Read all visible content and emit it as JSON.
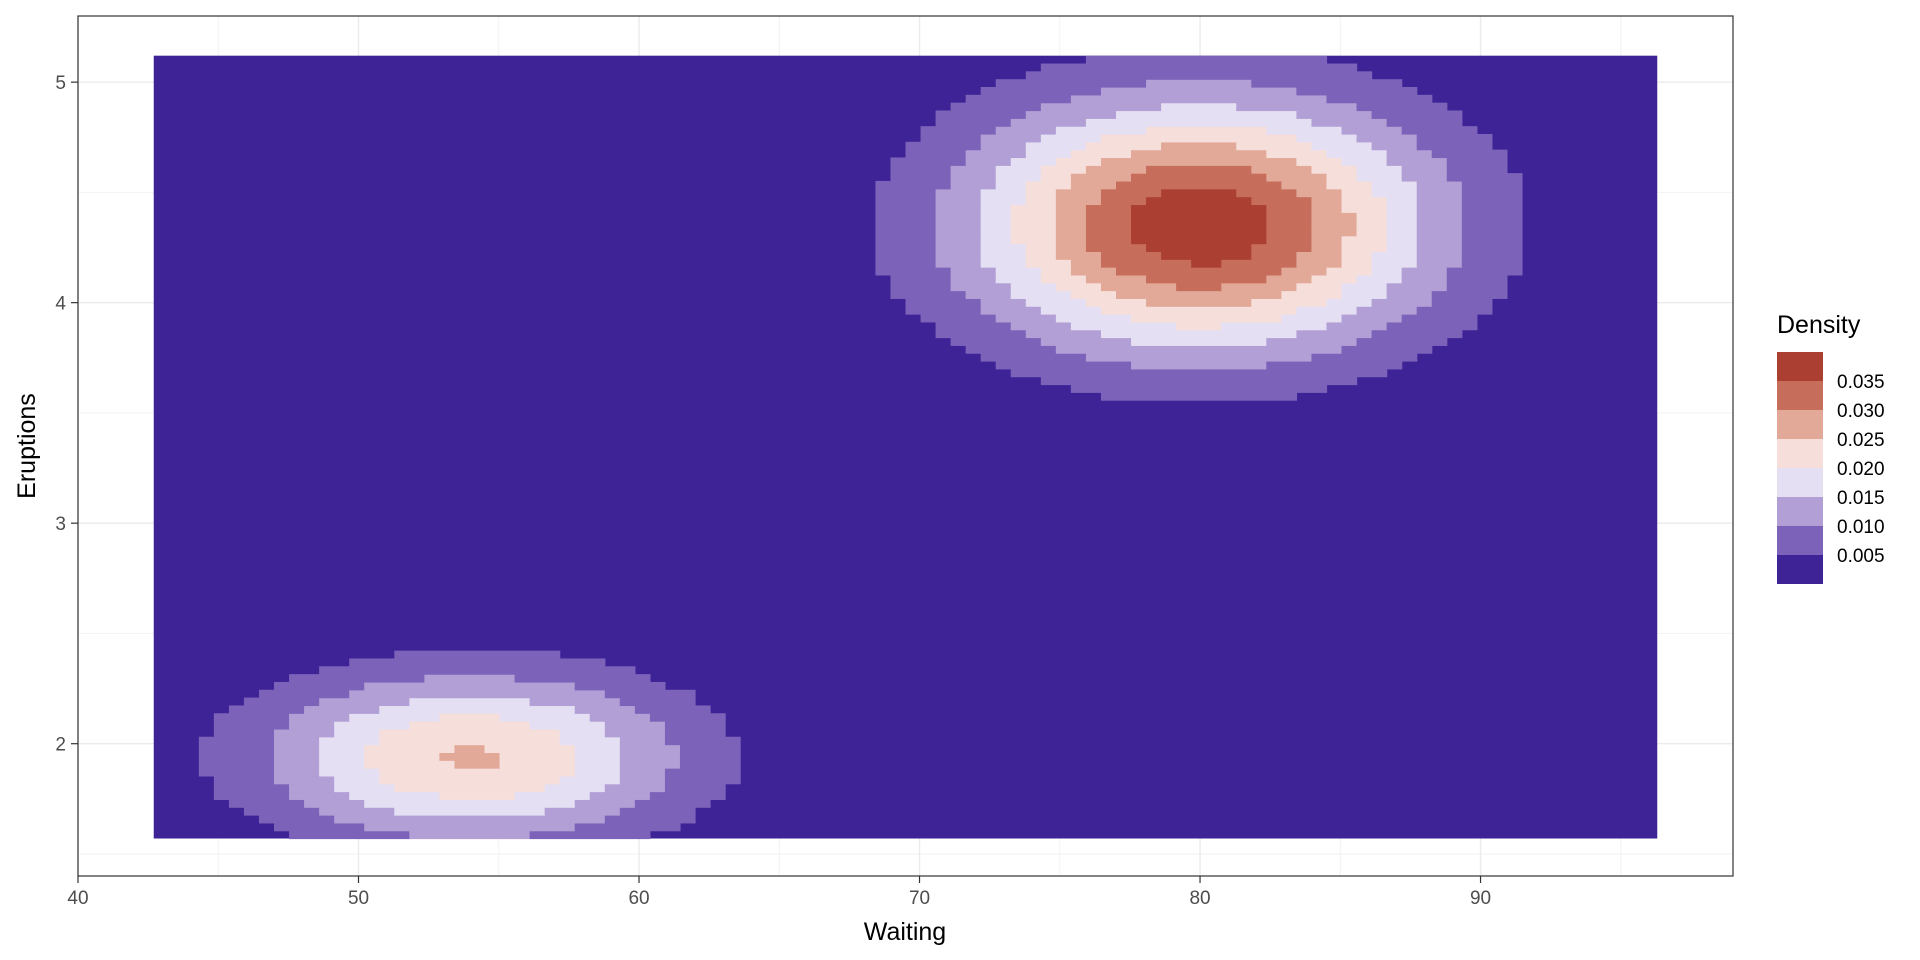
{
  "chart_data": {
    "type": "heatmap",
    "title": "",
    "xlabel": "Waiting",
    "ylabel": "Eruptions",
    "xlim": [
      40,
      99
    ],
    "ylim": [
      1.4,
      5.3
    ],
    "grid": true,
    "x_ticks": [
      40,
      50,
      60,
      70,
      80,
      90
    ],
    "y_ticks": [
      2,
      3,
      4,
      5
    ],
    "x_tick_labels": [
      "40",
      "50",
      "60",
      "70",
      "80",
      "90"
    ],
    "y_tick_labels": [
      "2",
      "3",
      "4",
      "5"
    ],
    "data_extent": {
      "x": [
        42.7,
        96.3
      ],
      "y": [
        1.57,
        5.12
      ]
    },
    "density_components": [
      {
        "mx": 80.0,
        "my": 4.35,
        "sx": 5.8,
        "sy": 0.4,
        "w": 0.0385
      },
      {
        "mx": 54.0,
        "my": 1.94,
        "sx": 5.3,
        "sy": 0.27,
        "w": 0.0255
      }
    ],
    "legend": {
      "title": "Density",
      "position": "right",
      "bins": [
        {
          "label": "0.035",
          "color": "#ab3f31"
        },
        {
          "label": "0.030",
          "color": "#c66d5c"
        },
        {
          "label": "0.025",
          "color": "#e2a898"
        },
        {
          "label": "0.020",
          "color": "#f6dfdb"
        },
        {
          "label": "0.015",
          "color": "#e4dff2"
        },
        {
          "label": "0.010",
          "color": "#b19fd5"
        },
        {
          "label": "0.005",
          "color": "#7c62b8"
        },
        {
          "label": "",
          "color": "#3d2396"
        }
      ]
    }
  }
}
